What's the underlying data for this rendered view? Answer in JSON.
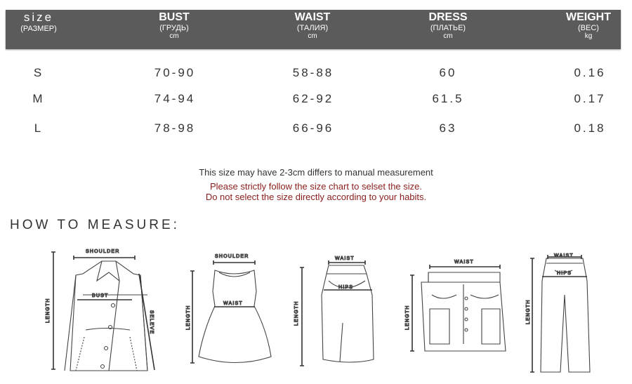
{
  "header": {
    "size": {
      "title": "size",
      "sub": "(РАЗМЕР)"
    },
    "bust": {
      "title": "BUST",
      "sub": "(ГРУДЬ)",
      "unit": "cm"
    },
    "waist": {
      "title": "WAIST",
      "sub": "(ТАЛИЯ)",
      "unit": "cm"
    },
    "dress": {
      "title": "DRESS",
      "sub": "(ПЛАТЬЕ)",
      "unit": "cm"
    },
    "weight": {
      "title": "WEIGHT",
      "sub": "(ВЕС)",
      "unit": "kg"
    }
  },
  "rows": [
    {
      "size": "S",
      "bust": "70-90",
      "waist": "58-88",
      "dress": "60",
      "weight": "0.16"
    },
    {
      "size": "M",
      "bust": "74-94",
      "waist": "62-92",
      "dress": "61.5",
      "weight": "0.17"
    },
    {
      "size": "L",
      "bust": "78-98",
      "waist": "66-96",
      "dress": "63",
      "weight": "0.18"
    }
  ],
  "notes": {
    "line1": "This size may have 2-3cm differs to manual measurement",
    "line2": "Please strictly follow the size chart to selset the size.",
    "line3": "Do not select the size directly according to your habits."
  },
  "colors": {
    "header_bg": "#5b5b5b",
    "note_red": "#8b1c1c"
  },
  "how_to_measure": "HOW TO MEASURE:",
  "figures": {
    "jacket": {
      "shoulder": "SHOULDER",
      "bust": "BUST",
      "length": "LENGTH",
      "sleeve": "SELEVE"
    },
    "dress": {
      "shoulder": "SHOULDER",
      "waist": "WAIST",
      "length": "LENGTH"
    },
    "skirt": {
      "waist": "WAIST",
      "hips": "HIPS",
      "length": "LENGTH"
    },
    "shorts": {
      "waist": "WAIST",
      "length": "LENGTH"
    },
    "pants": {
      "waist": "WAIST",
      "hips": "HIPS",
      "length": "LENGTH"
    }
  }
}
